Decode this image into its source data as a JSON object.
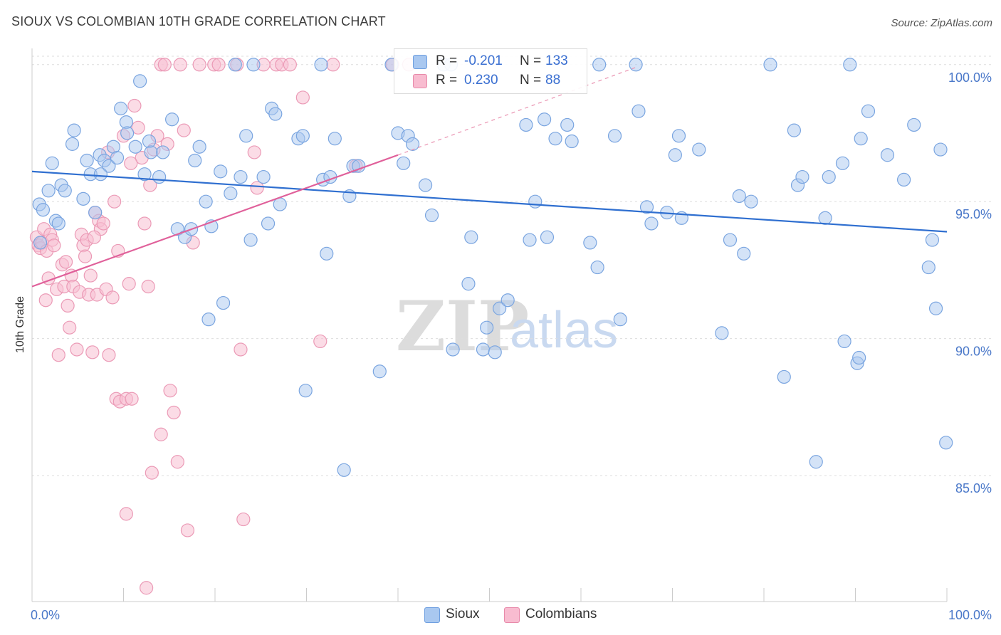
{
  "title": "SIOUX VS COLOMBIAN 10TH GRADE CORRELATION CHART",
  "source": "Source: ZipAtlas.com",
  "watermark": {
    "zip": "ZIP",
    "atlas": "atlas"
  },
  "legend": {
    "r_label": "R =",
    "n_label": "N =",
    "rows": [
      {
        "r": "-0.201",
        "n": "133",
        "color": "#a9c8f0",
        "border": "#6f9fe0"
      },
      {
        "r": "0.230",
        "n": "88",
        "color": "#f8bcd0",
        "border": "#e88aaa"
      }
    ]
  },
  "colors": {
    "sioux_fill": "#a9c8f0",
    "sioux_stroke": "#7aa5e0",
    "sioux_line": "#2f6fd0",
    "colombians_fill": "#f8c0d2",
    "colombians_stroke": "#eb9ab6",
    "colombians_line": "#e0609a"
  },
  "chart_data": {
    "type": "scatter",
    "xlabel": "",
    "ylabel": "10th Grade",
    "xlim": [
      0,
      100
    ],
    "ylim": [
      80.4,
      100.8
    ],
    "x_ticks": [
      0,
      10,
      20,
      30,
      40,
      50,
      60,
      70,
      80,
      90,
      100
    ],
    "x_tick_labels": {
      "0": "0.0%",
      "100": "100.0%"
    },
    "y_ticks": [
      85,
      90,
      95,
      100
    ],
    "y_tick_labels": [
      "85.0%",
      "90.0%",
      "95.0%",
      "100.0%"
    ],
    "grid": true,
    "legend_position": "top-center",
    "series": [
      {
        "name": "Sioux",
        "r": -0.201,
        "n": 133,
        "trend": {
          "x": [
            0,
            100
          ],
          "y": [
            96.1,
            93.9
          ]
        },
        "points": [
          [
            0.8,
            94.9
          ],
          [
            1.2,
            94.7
          ],
          [
            1.8,
            95.4
          ],
          [
            2.2,
            96.4
          ],
          [
            2.6,
            94.3
          ],
          [
            3.2,
            95.6
          ],
          [
            3.6,
            95.4
          ],
          [
            4.4,
            97.1
          ],
          [
            4.6,
            97.6
          ],
          [
            5.6,
            95.1
          ],
          [
            6.0,
            96.5
          ],
          [
            6.4,
            96.0
          ],
          [
            6.9,
            94.6
          ],
          [
            7.4,
            96.7
          ],
          [
            7.9,
            96.5
          ],
          [
            8.4,
            96.3
          ],
          [
            8.9,
            97.0
          ],
          [
            9.3,
            96.6
          ],
          [
            9.7,
            98.4
          ],
          [
            10.3,
            97.9
          ],
          [
            10.4,
            97.5
          ],
          [
            11.3,
            97.0
          ],
          [
            11.8,
            99.4
          ],
          [
            12.3,
            96.0
          ],
          [
            12.8,
            97.2
          ],
          [
            13.0,
            96.8
          ],
          [
            13.9,
            95.9
          ],
          [
            14.3,
            96.8
          ],
          [
            15.3,
            98.0
          ],
          [
            15.9,
            94.0
          ],
          [
            16.7,
            93.7
          ],
          [
            17.4,
            94.0
          ],
          [
            17.8,
            96.5
          ],
          [
            18.3,
            97.0
          ],
          [
            19.0,
            95.0
          ],
          [
            19.3,
            90.7
          ],
          [
            19.6,
            94.1
          ],
          [
            20.6,
            96.1
          ],
          [
            20.9,
            91.3
          ],
          [
            21.7,
            95.3
          ],
          [
            22.2,
            100.0
          ],
          [
            22.8,
            95.9
          ],
          [
            23.4,
            97.4
          ],
          [
            23.9,
            93.6
          ],
          [
            24.2,
            100.0
          ],
          [
            25.3,
            95.9
          ],
          [
            25.8,
            94.2
          ],
          [
            26.2,
            98.4
          ],
          [
            26.6,
            98.2
          ],
          [
            27.1,
            94.9
          ],
          [
            29.1,
            97.3
          ],
          [
            29.6,
            97.4
          ],
          [
            29.9,
            88.1
          ],
          [
            31.6,
            100.0
          ],
          [
            31.8,
            95.8
          ],
          [
            32.2,
            93.1
          ],
          [
            32.6,
            95.9
          ],
          [
            33.1,
            97.3
          ],
          [
            34.1,
            85.2
          ],
          [
            34.7,
            95.2
          ],
          [
            35.1,
            96.3
          ],
          [
            35.7,
            96.3
          ],
          [
            38.0,
            88.8
          ],
          [
            39.3,
            100.0
          ],
          [
            40.0,
            97.5
          ],
          [
            40.6,
            96.4
          ],
          [
            41.1,
            97.4
          ],
          [
            41.6,
            97.1
          ],
          [
            43.0,
            95.6
          ],
          [
            43.7,
            94.5
          ],
          [
            45.0,
            100.0
          ],
          [
            45.8,
            100.0
          ],
          [
            46.0,
            89.6
          ],
          [
            47.7,
            92.0
          ],
          [
            48.0,
            93.7
          ],
          [
            49.3,
            89.6
          ],
          [
            49.7,
            90.4
          ],
          [
            50.6,
            89.5
          ],
          [
            51.1,
            91.1
          ],
          [
            52.0,
            91.4
          ],
          [
            54.0,
            97.8
          ],
          [
            54.4,
            93.6
          ],
          [
            55.0,
            95.0
          ],
          [
            56.0,
            98.0
          ],
          [
            56.3,
            93.7
          ],
          [
            57.2,
            97.3
          ],
          [
            58.5,
            97.8
          ],
          [
            59.0,
            97.2
          ],
          [
            61.0,
            93.5
          ],
          [
            61.8,
            92.6
          ],
          [
            62.0,
            100.0
          ],
          [
            63.7,
            97.4
          ],
          [
            64.3,
            90.7
          ],
          [
            66.0,
            100.0
          ],
          [
            66.3,
            98.3
          ],
          [
            67.2,
            94.8
          ],
          [
            67.7,
            94.2
          ],
          [
            69.4,
            94.6
          ],
          [
            70.3,
            96.7
          ],
          [
            70.7,
            97.4
          ],
          [
            71.0,
            94.4
          ],
          [
            72.9,
            96.9
          ],
          [
            75.4,
            90.2
          ],
          [
            76.3,
            93.6
          ],
          [
            77.3,
            95.2
          ],
          [
            77.8,
            93.1
          ],
          [
            78.6,
            95.0
          ],
          [
            80.7,
            100.0
          ],
          [
            82.2,
            88.6
          ],
          [
            83.3,
            97.6
          ],
          [
            83.7,
            95.6
          ],
          [
            84.2,
            95.9
          ],
          [
            85.7,
            85.5
          ],
          [
            86.7,
            94.4
          ],
          [
            87.1,
            95.9
          ],
          [
            88.6,
            96.4
          ],
          [
            88.8,
            89.9
          ],
          [
            89.4,
            100.0
          ],
          [
            90.2,
            89.1
          ],
          [
            90.4,
            89.3
          ],
          [
            90.6,
            97.3
          ],
          [
            91.4,
            98.3
          ],
          [
            93.5,
            96.7
          ],
          [
            95.3,
            95.8
          ],
          [
            96.4,
            97.8
          ],
          [
            98.0,
            92.6
          ],
          [
            98.4,
            93.6
          ],
          [
            98.8,
            91.1
          ],
          [
            99.3,
            96.9
          ],
          [
            99.9,
            86.2
          ],
          [
            0.9,
            93.5
          ],
          [
            2.9,
            94.2
          ],
          [
            7.5,
            96.0
          ]
        ]
      },
      {
        "name": "Colombians",
        "r": 0.23,
        "n": 88,
        "trend": {
          "x": [
            0,
            40
          ],
          "y": [
            91.9,
            96.7
          ]
        },
        "trend_extension": {
          "x": [
            40,
            66
          ],
          "y": [
            96.7,
            99.9
          ]
        },
        "points": [
          [
            0.5,
            93.7
          ],
          [
            0.7,
            93.4
          ],
          [
            0.9,
            93.3
          ],
          [
            1.1,
            93.5
          ],
          [
            1.3,
            94.0
          ],
          [
            1.5,
            91.4
          ],
          [
            1.6,
            93.2
          ],
          [
            1.8,
            92.2
          ],
          [
            2.0,
            93.8
          ],
          [
            2.2,
            93.6
          ],
          [
            2.4,
            93.4
          ],
          [
            2.7,
            91.8
          ],
          [
            2.9,
            89.4
          ],
          [
            3.3,
            92.7
          ],
          [
            3.5,
            91.9
          ],
          [
            3.7,
            92.8
          ],
          [
            3.9,
            91.2
          ],
          [
            4.1,
            90.4
          ],
          [
            4.3,
            92.3
          ],
          [
            4.5,
            91.9
          ],
          [
            4.9,
            89.6
          ],
          [
            5.2,
            91.7
          ],
          [
            5.4,
            93.8
          ],
          [
            5.6,
            93.4
          ],
          [
            5.8,
            93.0
          ],
          [
            6.0,
            93.6
          ],
          [
            6.2,
            91.6
          ],
          [
            6.4,
            92.3
          ],
          [
            6.6,
            89.5
          ],
          [
            6.9,
            94.6
          ],
          [
            7.1,
            91.6
          ],
          [
            7.3,
            94.3
          ],
          [
            7.5,
            94.0
          ],
          [
            7.8,
            94.2
          ],
          [
            8.1,
            91.8
          ],
          [
            8.4,
            89.4
          ],
          [
            8.8,
            91.5
          ],
          [
            9.0,
            95.0
          ],
          [
            9.2,
            87.8
          ],
          [
            9.6,
            87.7
          ],
          [
            10.0,
            97.4
          ],
          [
            10.3,
            87.8
          ],
          [
            10.6,
            92.0
          ],
          [
            10.9,
            87.8
          ],
          [
            11.2,
            98.5
          ],
          [
            11.6,
            97.7
          ],
          [
            12.0,
            96.6
          ],
          [
            12.3,
            94.2
          ],
          [
            12.7,
            91.9
          ],
          [
            12.9,
            95.6
          ],
          [
            13.3,
            96.9
          ],
          [
            13.7,
            97.4
          ],
          [
            14.1,
            100.0
          ],
          [
            14.5,
            100.0
          ],
          [
            14.8,
            97.1
          ],
          [
            15.1,
            88.1
          ],
          [
            15.5,
            87.3
          ],
          [
            15.9,
            85.5
          ],
          [
            16.2,
            100.0
          ],
          [
            16.6,
            97.6
          ],
          [
            17.0,
            83.0
          ],
          [
            17.6,
            93.5
          ],
          [
            18.3,
            100.0
          ],
          [
            19.9,
            100.0
          ],
          [
            20.4,
            100.0
          ],
          [
            22.4,
            100.0
          ],
          [
            22.8,
            89.6
          ],
          [
            23.1,
            83.4
          ],
          [
            24.3,
            96.8
          ],
          [
            24.6,
            95.5
          ],
          [
            25.3,
            100.0
          ],
          [
            26.7,
            100.0
          ],
          [
            27.3,
            100.0
          ],
          [
            28.2,
            100.0
          ],
          [
            29.6,
            98.8
          ],
          [
            31.5,
            89.9
          ],
          [
            32.9,
            100.0
          ],
          [
            35.4,
            96.3
          ],
          [
            39.4,
            100.0
          ],
          [
            41.2,
            100.0
          ],
          [
            12.5,
            80.9
          ],
          [
            10.3,
            83.6
          ],
          [
            13.1,
            85.1
          ],
          [
            14.1,
            86.5
          ],
          [
            9.4,
            93.2
          ],
          [
            8.3,
            96.8
          ],
          [
            10.8,
            96.4
          ],
          [
            6.8,
            93.7
          ]
        ]
      }
    ]
  }
}
